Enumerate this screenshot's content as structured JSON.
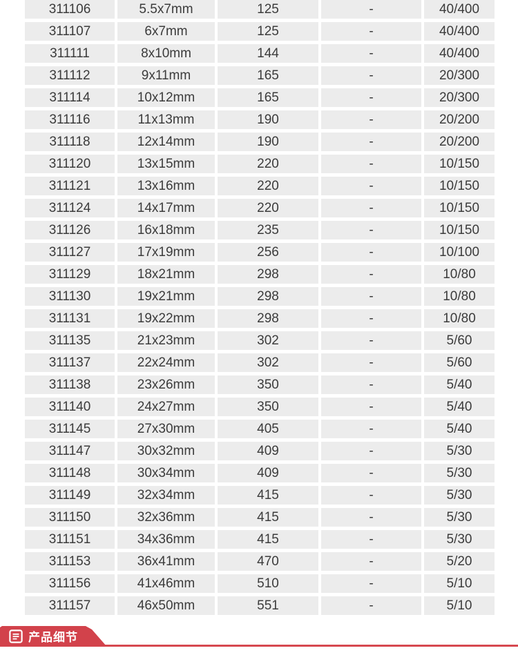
{
  "colors": {
    "accent_red": "#d2424b",
    "underline_red": "#d6484f",
    "cell_background": "#ececec",
    "cell_text": "#3b3b3b",
    "badge_text": "#ffffff"
  },
  "spec_table": {
    "columns": [
      "item-code",
      "size",
      "length",
      "blank",
      "packing-qty"
    ],
    "rows": [
      [
        "311106",
        "5.5x7mm",
        "125",
        "-",
        "40/400"
      ],
      [
        "311107",
        "6x7mm",
        "125",
        "-",
        "40/400"
      ],
      [
        "311111",
        "8x10mm",
        "144",
        "-",
        "40/400"
      ],
      [
        "311112",
        "9x11mm",
        "165",
        "-",
        "20/300"
      ],
      [
        "311114",
        "10x12mm",
        "165",
        "-",
        "20/300"
      ],
      [
        "311116",
        "11x13mm",
        "190",
        "-",
        "20/200"
      ],
      [
        "311118",
        "12x14mm",
        "190",
        "-",
        "20/200"
      ],
      [
        "311120",
        "13x15mm",
        "220",
        "-",
        "10/150"
      ],
      [
        "311121",
        "13x16mm",
        "220",
        "-",
        "10/150"
      ],
      [
        "311124",
        "14x17mm",
        "220",
        "-",
        "10/150"
      ],
      [
        "311126",
        "16x18mm",
        "235",
        "-",
        "10/150"
      ],
      [
        "311127",
        "17x19mm",
        "256",
        "-",
        "10/100"
      ],
      [
        "311129",
        "18x21mm",
        "298",
        "-",
        "10/80"
      ],
      [
        "311130",
        "19x21mm",
        "298",
        "-",
        "10/80"
      ],
      [
        "311131",
        "19x22mm",
        "298",
        "-",
        "10/80"
      ],
      [
        "311135",
        "21x23mm",
        "302",
        "-",
        "5/60"
      ],
      [
        "311137",
        "22x24mm",
        "302",
        "-",
        "5/60"
      ],
      [
        "311138",
        "23x26mm",
        "350",
        "-",
        "5/40"
      ],
      [
        "311140",
        "24x27mm",
        "350",
        "-",
        "5/40"
      ],
      [
        "311145",
        "27x30mm",
        "405",
        "-",
        "5/40"
      ],
      [
        "311147",
        "30x32mm",
        "409",
        "-",
        "5/30"
      ],
      [
        "311148",
        "30x34mm",
        "409",
        "-",
        "5/30"
      ],
      [
        "311149",
        "32x34mm",
        "415",
        "-",
        "5/30"
      ],
      [
        "311150",
        "32x36mm",
        "415",
        "-",
        "5/30"
      ],
      [
        "311151",
        "34x36mm",
        "415",
        "-",
        "5/30"
      ],
      [
        "311153",
        "36x41mm",
        "470",
        "-",
        "5/20"
      ],
      [
        "311156",
        "41x46mm",
        "510",
        "-",
        "5/10"
      ],
      [
        "311157",
        "46x50mm",
        "551",
        "-",
        "5/10"
      ]
    ]
  },
  "detail_section": {
    "badge_label": "产品细节",
    "icon": "document-lines-icon"
  }
}
